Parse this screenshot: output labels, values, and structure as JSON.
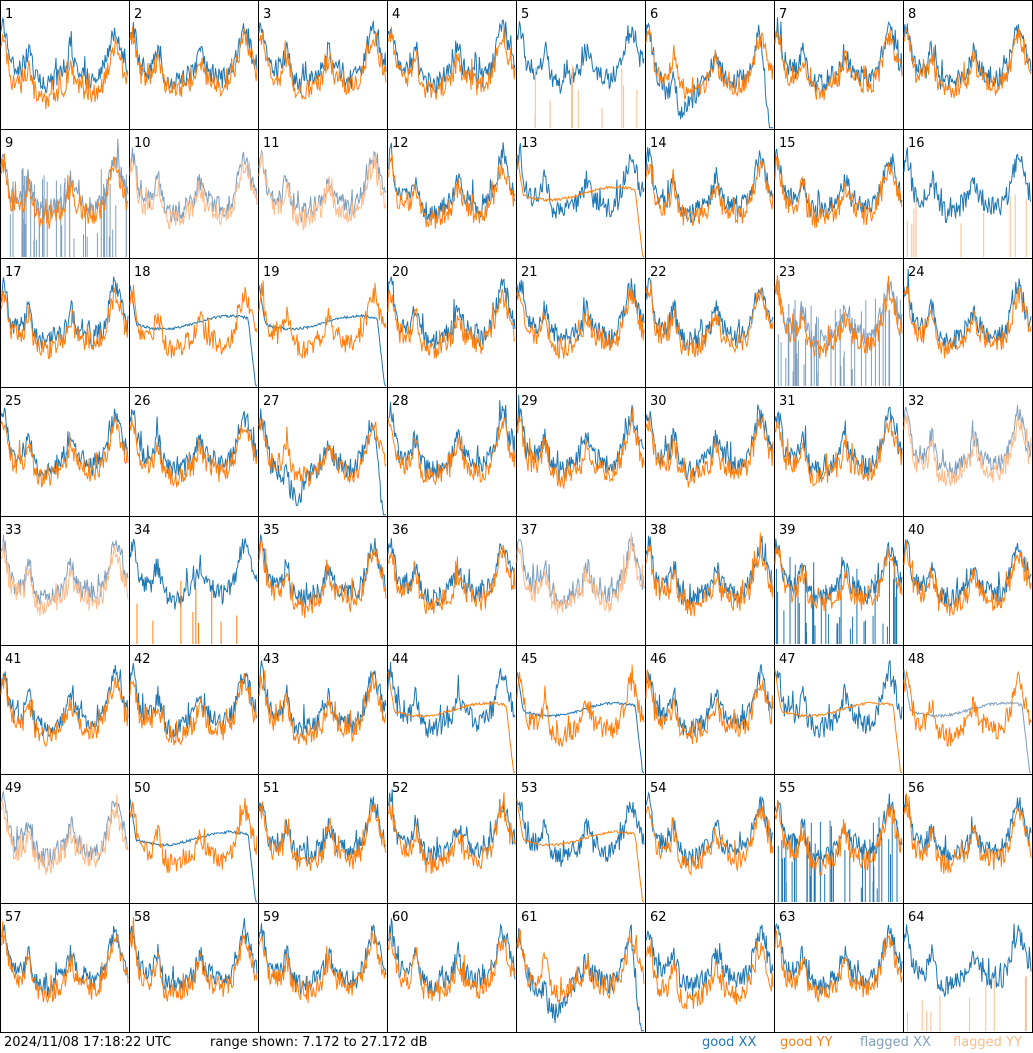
{
  "footer": {
    "timestamp": "2024/11/08 17:18:22 UTC",
    "range_text": "range shown: 7.172 to 27.172 dB"
  },
  "legend": [
    {
      "id": "good_xx",
      "label": "good XX",
      "color": "#1f77b4"
    },
    {
      "id": "good_yy",
      "label": "good YY",
      "color": "#ff7f0e"
    },
    {
      "id": "flagged_xx",
      "label": "flagged XX",
      "color": "#7f9fbf"
    },
    {
      "id": "flagged_yy",
      "label": "flagged YY",
      "color": "#ffbb88"
    }
  ],
  "chart_data": {
    "type": "line",
    "ylim_db": [
      7.172,
      27.172
    ],
    "grid": {
      "rows": 8,
      "cols": 8
    },
    "panels": [
      {
        "id": "1",
        "xx": "good",
        "yy": "good",
        "note": "yy-low"
      },
      {
        "id": "2",
        "xx": "good",
        "yy": "good"
      },
      {
        "id": "3",
        "xx": "good",
        "yy": "good"
      },
      {
        "id": "4",
        "xx": "good",
        "yy": "good"
      },
      {
        "id": "5",
        "xx": "good",
        "yy": "flagged",
        "note": "yy-spikes"
      },
      {
        "id": "6",
        "xx": "good",
        "yy": "good",
        "note": "xx-dip"
      },
      {
        "id": "7",
        "xx": "good",
        "yy": "good"
      },
      {
        "id": "8",
        "xx": "good",
        "yy": "good"
      },
      {
        "id": "9",
        "xx": "flagged",
        "yy": "good",
        "note": "xx-spikes"
      },
      {
        "id": "10",
        "xx": "flagged",
        "yy": "flagged"
      },
      {
        "id": "11",
        "xx": "flagged",
        "yy": "flagged"
      },
      {
        "id": "12",
        "xx": "good",
        "yy": "good"
      },
      {
        "id": "13",
        "xx": "good",
        "yy": "good",
        "note": "yy-flat"
      },
      {
        "id": "14",
        "xx": "good",
        "yy": "good"
      },
      {
        "id": "15",
        "xx": "good",
        "yy": "good"
      },
      {
        "id": "16",
        "xx": "good",
        "yy": "flagged",
        "note": "yy-spikes"
      },
      {
        "id": "17",
        "xx": "good",
        "yy": "good"
      },
      {
        "id": "18",
        "xx": "good",
        "yy": "good",
        "note": "xx-flat"
      },
      {
        "id": "19",
        "xx": "good",
        "yy": "good",
        "note": "xx-flat"
      },
      {
        "id": "20",
        "xx": "good",
        "yy": "good"
      },
      {
        "id": "21",
        "xx": "good",
        "yy": "good"
      },
      {
        "id": "22",
        "xx": "good",
        "yy": "good"
      },
      {
        "id": "23",
        "xx": "flagged",
        "yy": "good",
        "note": "xx-spikes"
      },
      {
        "id": "24",
        "xx": "good",
        "yy": "good"
      },
      {
        "id": "25",
        "xx": "good",
        "yy": "good"
      },
      {
        "id": "26",
        "xx": "good",
        "yy": "good"
      },
      {
        "id": "27",
        "xx": "good",
        "yy": "good",
        "note": "xx-dip"
      },
      {
        "id": "28",
        "xx": "good",
        "yy": "good"
      },
      {
        "id": "29",
        "xx": "good",
        "yy": "good"
      },
      {
        "id": "30",
        "xx": "good",
        "yy": "good"
      },
      {
        "id": "31",
        "xx": "good",
        "yy": "good"
      },
      {
        "id": "32",
        "xx": "flagged",
        "yy": "flagged"
      },
      {
        "id": "33",
        "xx": "flagged",
        "yy": "flagged"
      },
      {
        "id": "34",
        "xx": "good",
        "yy": "good",
        "note": "yy-spikes"
      },
      {
        "id": "35",
        "xx": "good",
        "yy": "good"
      },
      {
        "id": "36",
        "xx": "good",
        "yy": "good"
      },
      {
        "id": "37",
        "xx": "flagged",
        "yy": "flagged"
      },
      {
        "id": "38",
        "xx": "good",
        "yy": "good"
      },
      {
        "id": "39",
        "xx": "good",
        "yy": "good",
        "note": "xx-spikes"
      },
      {
        "id": "40",
        "xx": "good",
        "yy": "good"
      },
      {
        "id": "41",
        "xx": "good",
        "yy": "good"
      },
      {
        "id": "42",
        "xx": "good",
        "yy": "good"
      },
      {
        "id": "43",
        "xx": "good",
        "yy": "good"
      },
      {
        "id": "44",
        "xx": "good",
        "yy": "good",
        "note": "yy-flat"
      },
      {
        "id": "45",
        "xx": "good",
        "yy": "good",
        "note": "xx-flat"
      },
      {
        "id": "46",
        "xx": "good",
        "yy": "good"
      },
      {
        "id": "47",
        "xx": "good",
        "yy": "good",
        "note": "yy-flat"
      },
      {
        "id": "48",
        "xx": "flagged",
        "yy": "good",
        "note": "xx-flat"
      },
      {
        "id": "49",
        "xx": "flagged",
        "yy": "flagged"
      },
      {
        "id": "50",
        "xx": "good",
        "yy": "good",
        "note": "xx-flat"
      },
      {
        "id": "51",
        "xx": "good",
        "yy": "good"
      },
      {
        "id": "52",
        "xx": "good",
        "yy": "good"
      },
      {
        "id": "53",
        "xx": "good",
        "yy": "good",
        "note": "yy-flat"
      },
      {
        "id": "54",
        "xx": "good",
        "yy": "good"
      },
      {
        "id": "55",
        "xx": "good",
        "yy": "good",
        "note": "xx-spikes"
      },
      {
        "id": "56",
        "xx": "good",
        "yy": "good"
      },
      {
        "id": "57",
        "xx": "good",
        "yy": "good"
      },
      {
        "id": "58",
        "xx": "good",
        "yy": "good"
      },
      {
        "id": "59",
        "xx": "good",
        "yy": "good"
      },
      {
        "id": "60",
        "xx": "good",
        "yy": "good"
      },
      {
        "id": "61",
        "xx": "good",
        "yy": "good",
        "note": "xx-dip"
      },
      {
        "id": "62",
        "xx": "good",
        "yy": "good",
        "note": "yy-low"
      },
      {
        "id": "63",
        "xx": "good",
        "yy": "good"
      },
      {
        "id": "64",
        "xx": "good",
        "yy": "flagged",
        "note": "yy-spikes"
      }
    ]
  }
}
